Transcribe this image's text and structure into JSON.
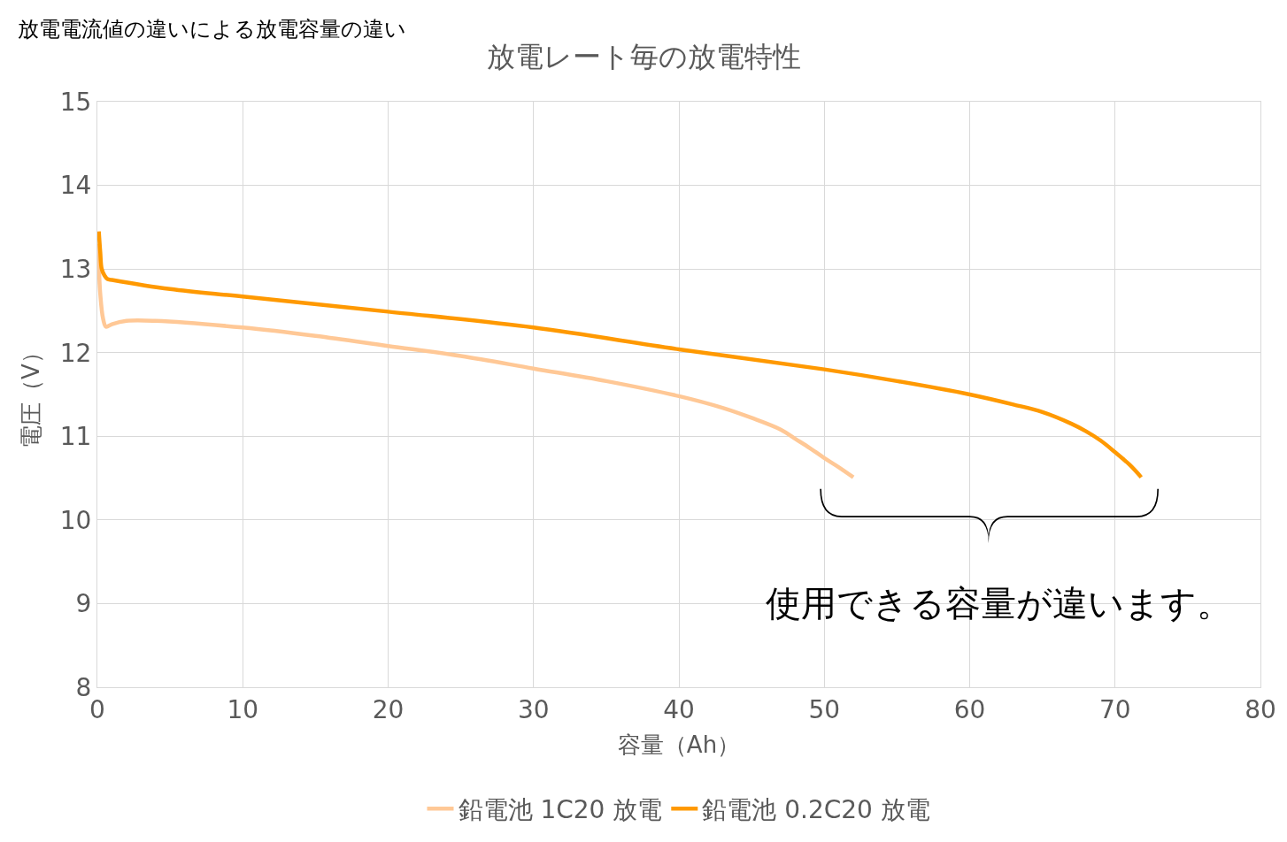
{
  "chart_data": {
    "type": "line",
    "title": "放電レート毎の放電特性",
    "xlabel": "容量（Ah）",
    "ylabel": "電圧（V）",
    "annotations": [
      "放電電流値の違いによる放電容量の違い",
      "使用できる容量が違います。"
    ],
    "series": [
      {
        "name": "鉛電池 1C20 放電",
        "color": "#ffc896",
        "x": [
          0.05,
          0.2,
          0.4,
          0.6,
          1,
          2,
          4,
          10,
          15,
          20,
          25,
          30,
          35,
          40,
          43,
          45,
          47,
          48,
          49,
          50,
          51,
          52
        ],
        "values": [
          13.3,
          12.7,
          12.4,
          12.31,
          12.34,
          12.38,
          12.38,
          12.3,
          12.2,
          12.08,
          11.96,
          11.81,
          11.66,
          11.48,
          11.34,
          11.22,
          11.08,
          10.97,
          10.86,
          10.74,
          10.63,
          10.51
        ]
      },
      {
        "name": "鉛電池 0.2C20 放電",
        "color": "#ff9900",
        "x": [
          0.1,
          0.2,
          0.3,
          0.5,
          0.7,
          1,
          5,
          10,
          20,
          30,
          40,
          50,
          55,
          60,
          63,
          65,
          67,
          68,
          69,
          70,
          71,
          71.8
        ],
        "values": [
          13.45,
          13.2,
          13.0,
          12.92,
          12.88,
          12.87,
          12.76,
          12.67,
          12.49,
          12.3,
          12.04,
          11.8,
          11.66,
          11.5,
          11.38,
          11.29,
          11.15,
          11.06,
          10.95,
          10.81,
          10.66,
          10.51
        ]
      }
    ],
    "xlim": [
      0,
      80
    ],
    "xticks": [
      0,
      10,
      20,
      30,
      40,
      50,
      60,
      70,
      80
    ],
    "ylim": [
      8,
      15
    ],
    "yticks": [
      8,
      9,
      10,
      11,
      12,
      13,
      14,
      15
    ],
    "grid": true,
    "legend": "bottom",
    "marker": "none",
    "line_style": "solid"
  }
}
